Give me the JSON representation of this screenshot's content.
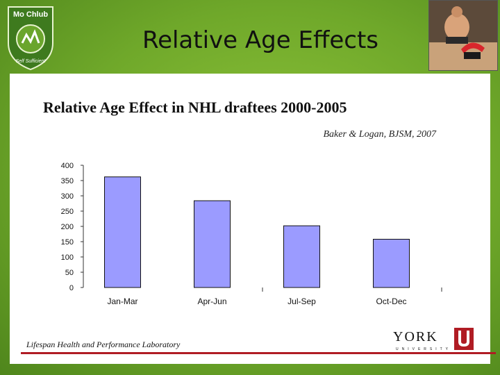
{
  "slide": {
    "title": "Relative Age Effects",
    "logo_text_top": "Mo Chlub",
    "logo_text_bottom": "Self Sufficient",
    "footer_lab": "Lifespan Health and Performance Laboratory",
    "york_wordmark": "YORK",
    "york_subtext": "UNIVERSITY"
  },
  "colors": {
    "bar_fill": "#9b9bff",
    "bar_stroke": "#111111",
    "accent_red": "#b01c24",
    "background_green": "#7db634"
  },
  "chart_data": {
    "type": "bar",
    "title": "Relative Age Effect in NHL draftees 2000-2005",
    "subtitle": "Baker & Logan, BJSM, 2007",
    "categories": [
      "Jan-Mar",
      "Apr-Jun",
      "Jul-Sep",
      "Oct-Dec"
    ],
    "values": [
      362,
      284,
      202,
      158
    ],
    "yticks": [
      "0",
      "50",
      "100",
      "150",
      "200",
      "250",
      "300",
      "350",
      "400"
    ],
    "ylim": [
      0,
      400
    ],
    "xlabel": "",
    "ylabel": "",
    "grid": false,
    "legend": false
  }
}
